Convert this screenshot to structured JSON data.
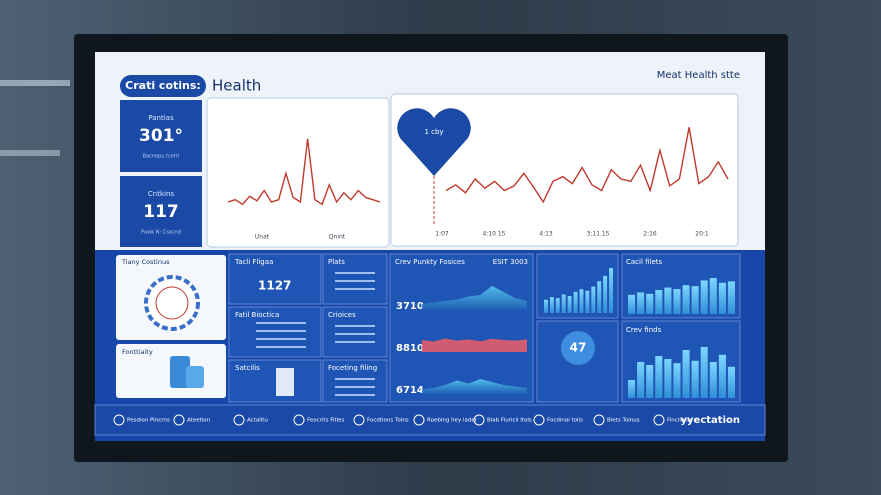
{
  "header": {
    "badge": "Crati cotins:",
    "title": "Health",
    "right": "Meat Health stte"
  },
  "tiles": [
    {
      "label": "Pantias",
      "value": "301°",
      "note": "Bacnepu tcerit"
    },
    {
      "label": "Cntkins",
      "value": "117",
      "note": "Puwk N: Csacnd"
    }
  ],
  "ecg_small": {
    "ylim": [
      0,
      100
    ],
    "values": [
      20,
      22,
      18,
      25,
      21,
      30,
      20,
      22,
      45,
      24,
      20,
      75,
      22,
      18,
      35,
      20,
      28,
      22,
      30,
      24,
      22,
      20
    ],
    "x_labels": [
      "Unat",
      "Qnint"
    ]
  },
  "ecg_large": {
    "heart_label": "1 cby",
    "ylim": [
      0,
      100
    ],
    "values": [
      30,
      35,
      28,
      40,
      32,
      38,
      30,
      34,
      45,
      33,
      20,
      38,
      42,
      36,
      50,
      35,
      30,
      48,
      40,
      38,
      52,
      30,
      65,
      34,
      40,
      85,
      36,
      42,
      55,
      40
    ],
    "x_labels": [
      "1:07",
      "4:10 15",
      "4:13",
      "3:11.15",
      "2:16",
      "20:1"
    ]
  },
  "side_cards": [
    "Tiany Costinus",
    "Fonttiaity"
  ],
  "cards": [
    {
      "title": "Tacli Fligaa",
      "value": "1127"
    },
    {
      "title": "Fatil Bioctica"
    },
    {
      "title": "Satcilis"
    }
  ],
  "list_cards": [
    "Plats",
    "Crioices",
    "Foceting filing"
  ],
  "panels": {
    "title": "Crev Punkty Fosices",
    "code": "ESIT 3003",
    "rows": [
      {
        "value": "3710",
        "ylim": [
          0,
          100
        ],
        "values": [
          20,
          25,
          30,
          35,
          45,
          50,
          80,
          60,
          40,
          30
        ]
      },
      {
        "value": "8810",
        "ylim": [
          0,
          100
        ],
        "values": [
          40,
          35,
          45,
          38,
          42,
          36,
          44,
          40,
          38,
          42
        ]
      },
      {
        "value": "6714",
        "ylim": [
          0,
          100
        ],
        "values": [
          15,
          20,
          30,
          45,
          35,
          50,
          40,
          30,
          25,
          20
        ]
      }
    ]
  },
  "bars1": {
    "ylim": [
      0,
      100
    ],
    "values": [
      25,
      30,
      28,
      35,
      32,
      40,
      45,
      42,
      50,
      60,
      70,
      85
    ]
  },
  "gauge": {
    "value": "47"
  },
  "bars2": {
    "title": "Cacil filets",
    "ylim": [
      0,
      100
    ],
    "values": [
      40,
      45,
      42,
      50,
      55,
      52,
      60,
      58,
      70,
      75,
      65,
      68
    ]
  },
  "bars3": {
    "title": "Crev finds",
    "ylim": [
      0,
      100
    ],
    "values": [
      30,
      60,
      55,
      70,
      65,
      58,
      80,
      62,
      85,
      60,
      72,
      52
    ]
  },
  "footer": [
    "Pesdion Pincrns",
    "Ateetion",
    "Actalitu",
    "Feocrits Fitles",
    "Focdtions Tolns",
    "Roebing hey lader",
    "Biab Fiuricil ltols",
    "Focdinai tolis",
    "Biets Tolnus",
    "Fincilenb",
    "yyectation"
  ]
}
